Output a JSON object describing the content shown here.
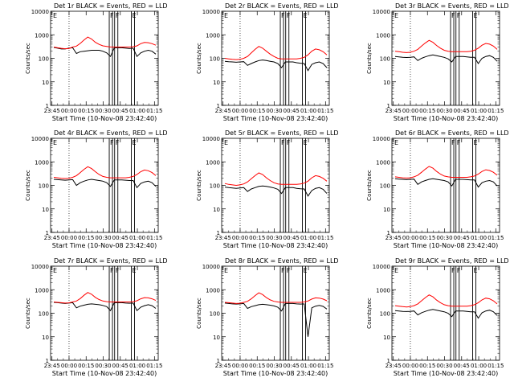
{
  "colors": {
    "events": "#000000",
    "lld": "#ff0000",
    "axes": "#000000",
    "background": "#ffffff"
  },
  "chart_data": [
    {
      "type": "line",
      "title": "Det 1r BLACK = Events, RED = LLD",
      "xlabel": "Start Time (10-Nov-08 23:42:40)",
      "ylabel": "Counts/sec",
      "x_ticks": [
        "23:45",
        "00:00",
        "00:15",
        "00:30",
        "00:45",
        "01:00",
        "01:15"
      ],
      "y_scale": "log",
      "ylim": [
        1,
        10000
      ],
      "y_ticks": [
        "1",
        "10",
        "100",
        "1000",
        "10000"
      ],
      "markers": [
        "E",
        "F",
        "F",
        "E"
      ],
      "series": [
        {
          "name": "Events",
          "color": "#000000",
          "values": [
            290,
            270,
            250,
            250,
            270,
            280,
            160,
            190,
            200,
            210,
            220,
            220,
            220,
            200,
            170,
            120,
            280,
            280,
            280,
            270,
            260,
            270,
            120,
            170,
            200,
            220,
            200,
            150
          ]
        },
        {
          "name": "LLD",
          "color": "#ff0000",
          "values": [
            300,
            280,
            265,
            255,
            260,
            300,
            330,
            430,
            600,
            800,
            660,
            480,
            390,
            340,
            320,
            300,
            300,
            300,
            300,
            300,
            300,
            310,
            340,
            420,
            470,
            460,
            420,
            360
          ]
        }
      ]
    },
    {
      "type": "line",
      "title": "Det 2r BLACK = Events, RED = LLD",
      "xlabel": "Start Time (10-Nov-08 23:42:40)",
      "ylabel": "Counts/sec",
      "x_ticks": [
        "23:45",
        "00:00",
        "00:15",
        "00:30",
        "00:45",
        "01:00",
        "01:15"
      ],
      "y_scale": "log",
      "ylim": [
        1,
        10000
      ],
      "y_ticks": [
        "1",
        "10",
        "100",
        "1000",
        "10000"
      ],
      "markers": [
        "E",
        "F",
        "F",
        "E"
      ],
      "series": [
        {
          "name": "Events",
          "color": "#000000",
          "values": [
            75,
            72,
            70,
            68,
            70,
            72,
            50,
            60,
            70,
            80,
            85,
            80,
            75,
            70,
            60,
            40,
            70,
            70,
            70,
            65,
            62,
            60,
            30,
            55,
            65,
            70,
            60,
            40
          ]
        },
        {
          "name": "LLD",
          "color": "#ff0000",
          "values": [
            100,
            95,
            90,
            88,
            90,
            100,
            120,
            170,
            240,
            320,
            270,
            200,
            150,
            120,
            100,
            95,
            95,
            95,
            95,
            95,
            100,
            110,
            140,
            200,
            250,
            230,
            190,
            140
          ]
        }
      ]
    },
    {
      "type": "line",
      "title": "Det 3r BLACK = Events, RED = LLD",
      "xlabel": "Start Time (10-Nov-08 23:42:40)",
      "ylabel": "Counts/sec",
      "x_ticks": [
        "23:45",
        "00:00",
        "00:15",
        "00:30",
        "00:45",
        "01:00",
        "01:15"
      ],
      "y_scale": "log",
      "ylim": [
        1,
        10000
      ],
      "y_ticks": [
        "1",
        "10",
        "100",
        "1000",
        "10000"
      ],
      "markers": [
        "E",
        "F",
        "F",
        "E"
      ],
      "series": [
        {
          "name": "Events",
          "color": "#000000",
          "values": [
            120,
            115,
            110,
            108,
            110,
            115,
            80,
            100,
            115,
            130,
            140,
            130,
            120,
            110,
            95,
            70,
            120,
            120,
            120,
            115,
            110,
            110,
            60,
            100,
            120,
            130,
            110,
            75
          ]
        },
        {
          "name": "LLD",
          "color": "#ff0000",
          "values": [
            200,
            190,
            180,
            175,
            180,
            200,
            240,
            330,
            450,
            580,
            480,
            350,
            270,
            220,
            200,
            190,
            190,
            190,
            190,
            190,
            200,
            220,
            270,
            360,
            430,
            400,
            330,
            240
          ]
        }
      ]
    },
    {
      "type": "line",
      "title": "Det 4r BLACK = Events, RED = LLD",
      "xlabel": "Start Time (10-Nov-08 23:42:40)",
      "ylabel": "Counts/sec",
      "x_ticks": [
        "23:45",
        "00:00",
        "00:15",
        "00:30",
        "00:45",
        "01:00",
        "01:15"
      ],
      "y_scale": "log",
      "ylim": [
        1,
        10000
      ],
      "y_ticks": [
        "1",
        "10",
        "100",
        "1000",
        "10000"
      ],
      "markers": [
        "E",
        "F",
        "F",
        "E"
      ],
      "series": [
        {
          "name": "Events",
          "color": "#000000",
          "values": [
            180,
            175,
            170,
            165,
            170,
            175,
            100,
            130,
            150,
            170,
            180,
            170,
            160,
            150,
            130,
            90,
            170,
            170,
            170,
            165,
            160,
            160,
            80,
            120,
            140,
            150,
            130,
            90
          ]
        },
        {
          "name": "LLD",
          "color": "#ff0000",
          "values": [
            220,
            210,
            200,
            195,
            200,
            220,
            260,
            350,
            480,
            620,
            520,
            380,
            290,
            240,
            220,
            210,
            210,
            210,
            210,
            210,
            220,
            240,
            290,
            380,
            450,
            420,
            350,
            260
          ]
        }
      ]
    },
    {
      "type": "line",
      "title": "Det 5r BLACK = Events, RED = LLD",
      "xlabel": "Start Time (10-Nov-08 23:42:40)",
      "ylabel": "Counts/sec",
      "x_ticks": [
        "23:45",
        "00:00",
        "00:15",
        "00:30",
        "00:45",
        "01:00",
        "01:15"
      ],
      "y_scale": "log",
      "ylim": [
        1,
        10000
      ],
      "y_ticks": [
        "1",
        "10",
        "100",
        "1000",
        "10000"
      ],
      "markers": [
        "E",
        "F",
        "F",
        "E"
      ],
      "series": [
        {
          "name": "Events",
          "color": "#000000",
          "values": [
            85,
            80,
            78,
            75,
            78,
            80,
            55,
            70,
            80,
            90,
            95,
            90,
            85,
            78,
            68,
            45,
            80,
            80,
            80,
            75,
            72,
            70,
            35,
            60,
            75,
            80,
            68,
            45
          ]
        },
        {
          "name": "LLD",
          "color": "#ff0000",
          "values": [
            120,
            110,
            105,
            100,
            105,
            115,
            140,
            190,
            260,
            340,
            290,
            210,
            160,
            130,
            115,
            110,
            110,
            110,
            110,
            110,
            115,
            125,
            150,
            210,
            260,
            240,
            200,
            150
          ]
        }
      ]
    },
    {
      "type": "line",
      "title": "Det 6r BLACK = Events, RED = LLD",
      "xlabel": "Start Time (10-Nov-08 23:42:40)",
      "ylabel": "Counts/sec",
      "x_ticks": [
        "23:45",
        "00:00",
        "00:15",
        "00:30",
        "00:45",
        "01:00",
        "01:15"
      ],
      "y_scale": "log",
      "ylim": [
        1,
        10000
      ],
      "y_ticks": [
        "1",
        "10",
        "100",
        "1000",
        "10000"
      ],
      "markers": [
        "E",
        "F",
        "F",
        "E"
      ],
      "series": [
        {
          "name": "Events",
          "color": "#000000",
          "values": [
            190,
            185,
            180,
            175,
            180,
            185,
            110,
            140,
            160,
            180,
            190,
            180,
            170,
            160,
            140,
            95,
            180,
            180,
            180,
            175,
            170,
            170,
            85,
            130,
            150,
            160,
            140,
            95
          ]
        },
        {
          "name": "LLD",
          "color": "#ff0000",
          "values": [
            230,
            220,
            210,
            205,
            210,
            230,
            270,
            360,
            490,
            640,
            540,
            390,
            300,
            250,
            230,
            220,
            220,
            220,
            220,
            220,
            230,
            250,
            300,
            390,
            460,
            430,
            360,
            270
          ]
        }
      ]
    },
    {
      "type": "line",
      "title": "Det 7r BLACK = Events, RED = LLD",
      "xlabel": "Start Time (10-Nov-08 23:42:40)",
      "ylabel": "Counts/sec",
      "x_ticks": [
        "23:45",
        "00:00",
        "00:15",
        "00:30",
        "00:45",
        "01:00",
        "01:15"
      ],
      "y_scale": "log",
      "ylim": [
        1,
        10000
      ],
      "y_ticks": [
        "1",
        "10",
        "100",
        "1000",
        "10000"
      ],
      "markers": [
        "E",
        "F",
        "F",
        "E"
      ],
      "series": [
        {
          "name": "Events",
          "color": "#000000",
          "values": [
            290,
            280,
            270,
            260,
            270,
            280,
            170,
            200,
            220,
            240,
            250,
            240,
            230,
            215,
            190,
            130,
            280,
            280,
            280,
            270,
            265,
            270,
            130,
            180,
            210,
            230,
            210,
            160
          ]
        },
        {
          "name": "LLD",
          "color": "#ff0000",
          "values": [
            300,
            290,
            280,
            270,
            275,
            300,
            330,
            420,
            580,
            760,
            640,
            470,
            380,
            330,
            310,
            300,
            300,
            300,
            300,
            300,
            300,
            310,
            340,
            410,
            460,
            450,
            410,
            350
          ]
        }
      ]
    },
    {
      "type": "line",
      "title": "Det 8r BLACK = Events, RED = LLD",
      "xlabel": "Start Time (10-Nov-08 23:42:40)",
      "ylabel": "Counts/sec",
      "x_ticks": [
        "23:45",
        "00:00",
        "00:15",
        "00:30",
        "00:45",
        "01:00",
        "01:15"
      ],
      "y_scale": "log",
      "ylim": [
        1,
        10000
      ],
      "y_ticks": [
        "1",
        "10",
        "100",
        "1000",
        "10000"
      ],
      "markers": [
        "E",
        "F",
        "F",
        "E"
      ],
      "series": [
        {
          "name": "Events",
          "color": "#000000",
          "values": [
            270,
            260,
            250,
            245,
            250,
            260,
            160,
            190,
            210,
            230,
            240,
            230,
            220,
            205,
            180,
            125,
            260,
            260,
            260,
            250,
            245,
            250,
            10,
            170,
            200,
            215,
            195,
            150
          ]
        },
        {
          "name": "LLD",
          "color": "#ff0000",
          "values": [
            290,
            280,
            270,
            260,
            265,
            290,
            320,
            410,
            560,
            740,
            620,
            460,
            370,
            320,
            300,
            290,
            290,
            290,
            290,
            290,
            290,
            300,
            330,
            400,
            450,
            440,
            400,
            340
          ]
        }
      ]
    },
    {
      "type": "line",
      "title": "Det 9r BLACK = Events, RED = LLD",
      "xlabel": "Start Time (10-Nov-08 23:42:40)",
      "ylabel": "Counts/sec",
      "x_ticks": [
        "23:45",
        "00:00",
        "00:15",
        "00:30",
        "00:45",
        "01:00",
        "01:15"
      ],
      "y_scale": "log",
      "ylim": [
        1,
        10000
      ],
      "y_ticks": [
        "1",
        "10",
        "100",
        "1000",
        "10000"
      ],
      "markers": [
        "E",
        "F",
        "F",
        "E"
      ],
      "series": [
        {
          "name": "Events",
          "color": "#000000",
          "values": [
            130,
            125,
            120,
            118,
            120,
            125,
            85,
            105,
            120,
            135,
            145,
            135,
            125,
            115,
            100,
            72,
            125,
            125,
            125,
            120,
            115,
            115,
            62,
            105,
            125,
            135,
            115,
            80
          ]
        },
        {
          "name": "LLD",
          "color": "#ff0000",
          "values": [
            210,
            200,
            190,
            185,
            190,
            210,
            250,
            340,
            460,
            600,
            500,
            360,
            280,
            230,
            210,
            200,
            200,
            200,
            200,
            200,
            210,
            230,
            280,
            370,
            440,
            410,
            340,
            250
          ]
        }
      ]
    }
  ]
}
